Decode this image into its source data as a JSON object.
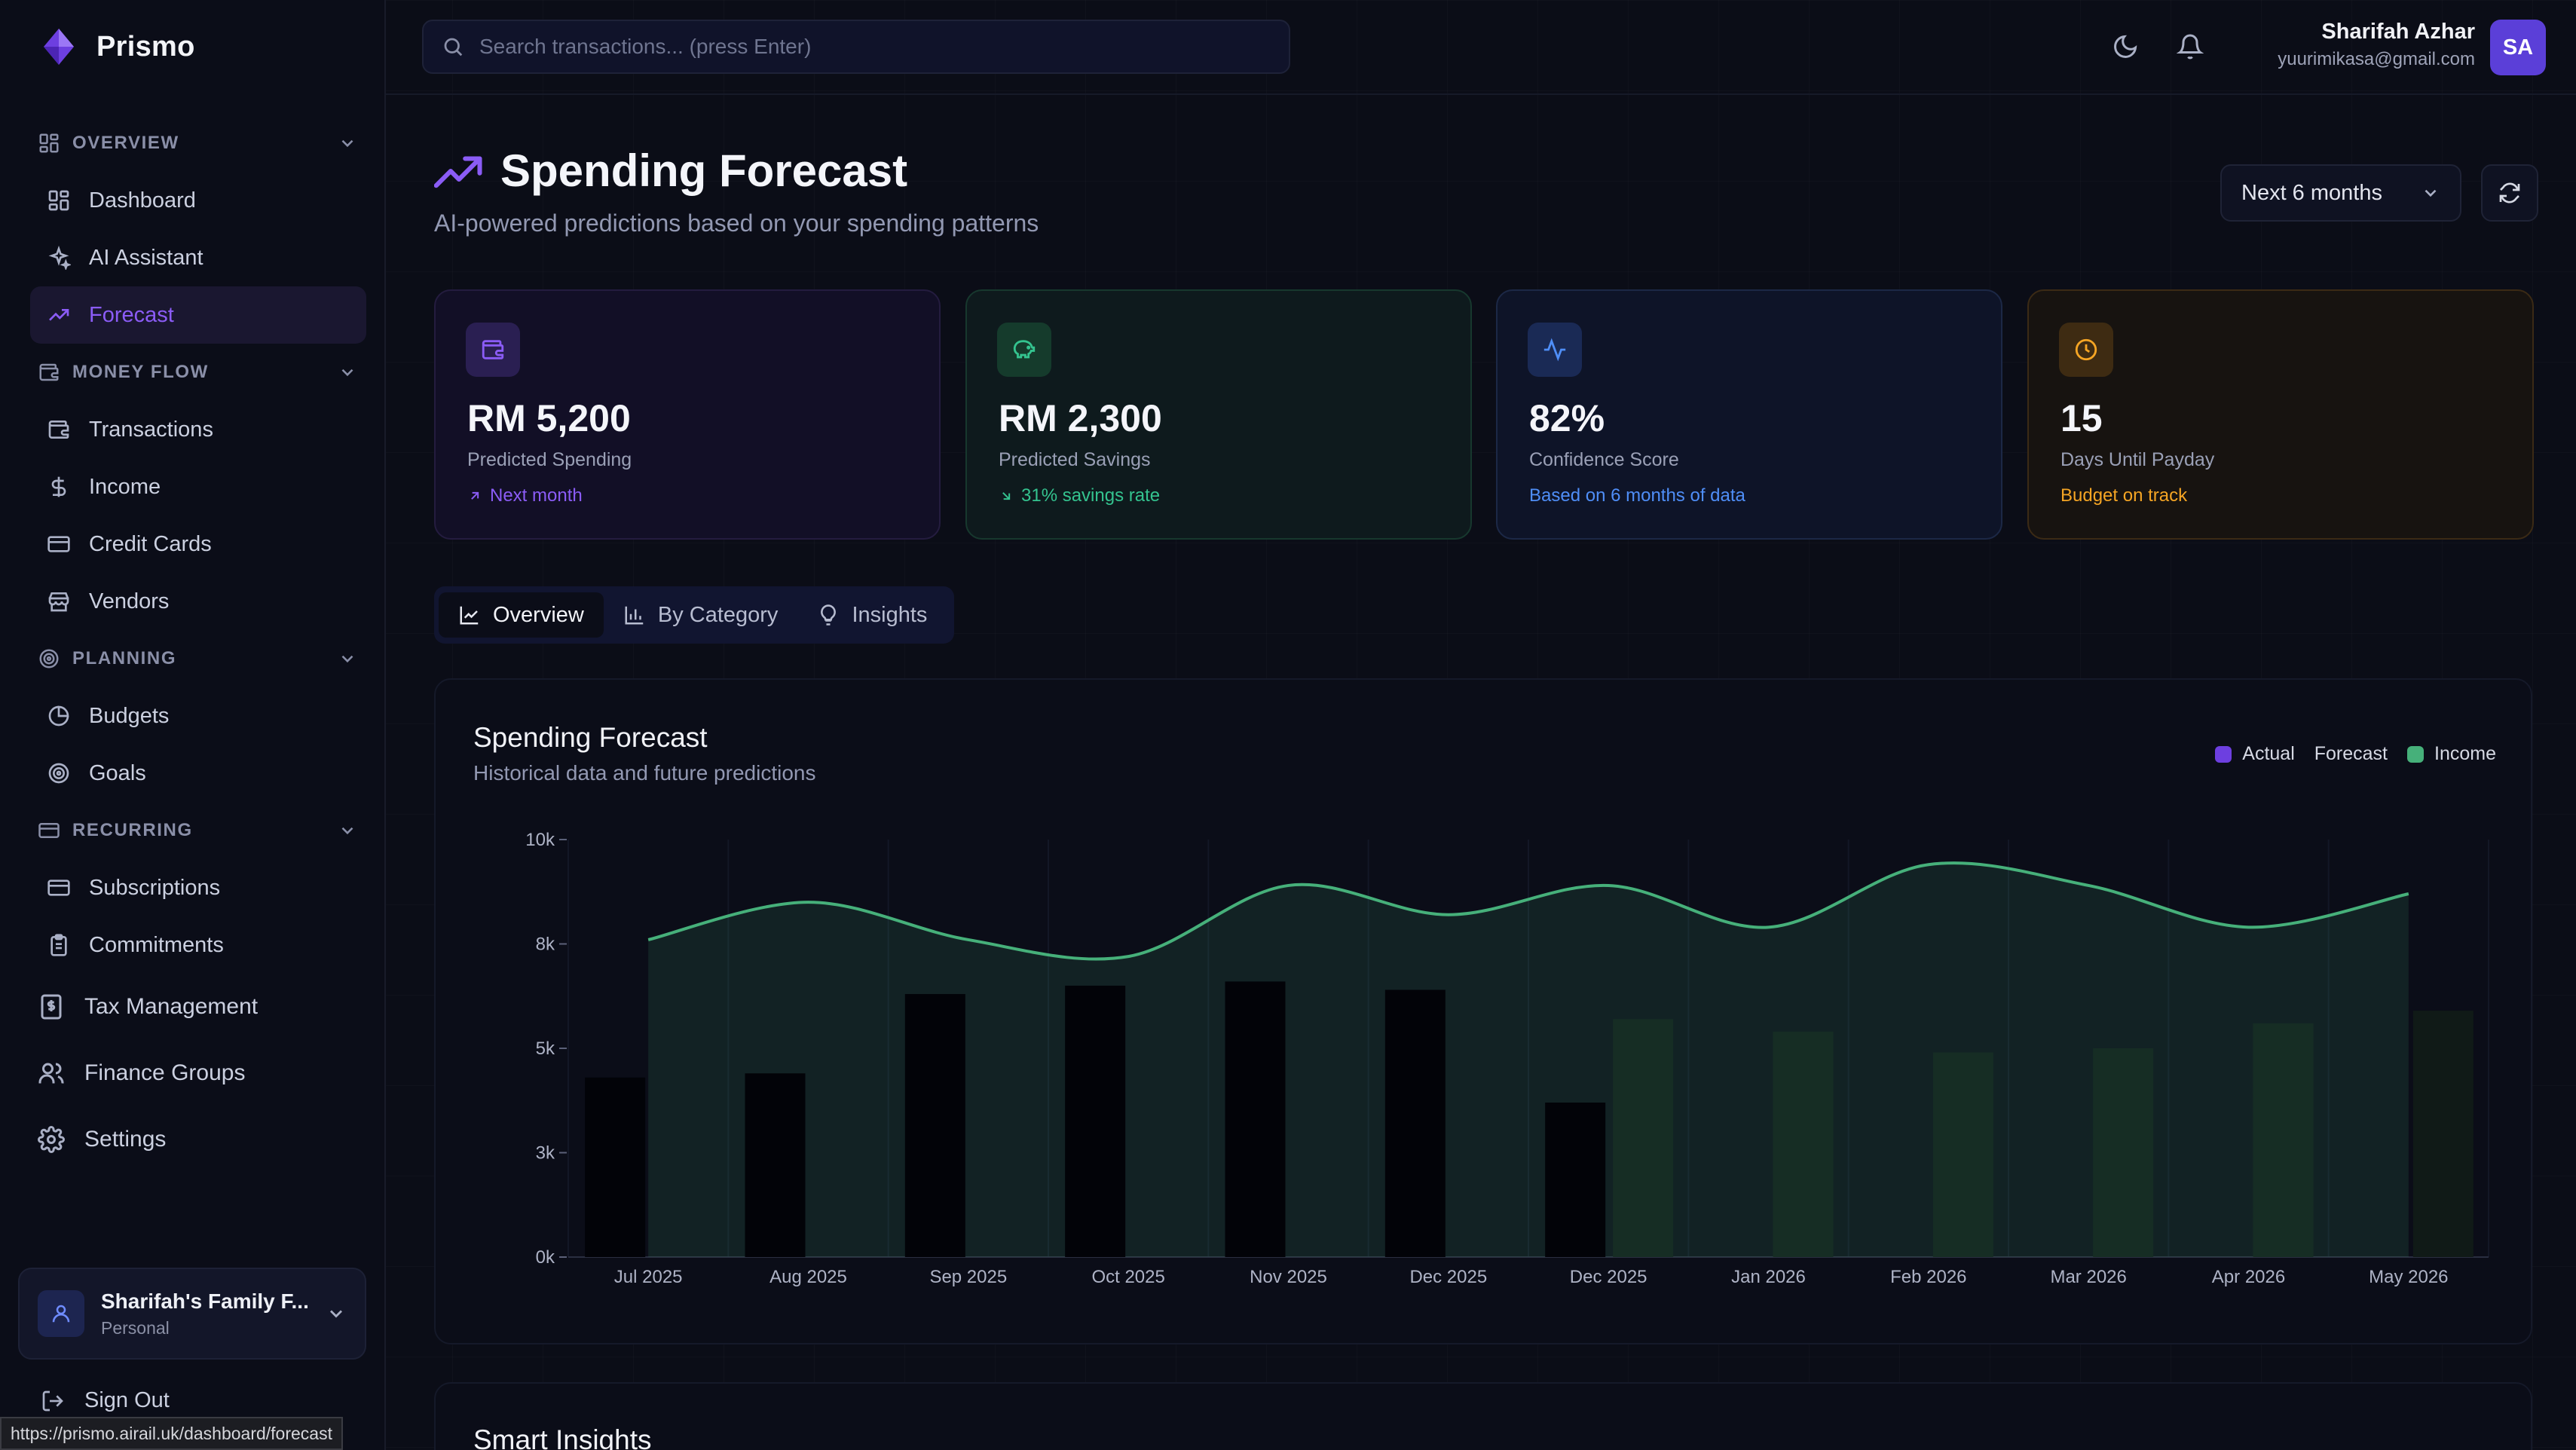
{
  "app": {
    "name": "Prismo"
  },
  "sidebar": {
    "sections": {
      "overview": "OVERVIEW",
      "money_flow": "MONEY FLOW",
      "planning": "PLANNING",
      "recurring": "RECURRING"
    },
    "items": {
      "dashboard": "Dashboard",
      "ai_assistant": "AI Assistant",
      "forecast": "Forecast",
      "transactions": "Transactions",
      "income": "Income",
      "credit_cards": "Credit Cards",
      "vendors": "Vendors",
      "budgets": "Budgets",
      "goals": "Goals",
      "subscriptions": "Subscriptions",
      "commitments": "Commitments",
      "tax_management": "Tax Management",
      "finance_groups": "Finance Groups",
      "settings": "Settings"
    },
    "workspace": {
      "name": "Sharifah's Family F...",
      "type": "Personal"
    },
    "sign_out": "Sign Out"
  },
  "statusbar": {
    "url": "https://prismo.airail.uk/dashboard/forecast"
  },
  "topbar": {
    "search_placeholder": "Search transactions... (press Enter)",
    "user_name": "Sharifah Azhar",
    "user_email": "yuurimikasa@gmail.com",
    "avatar_initials": "SA"
  },
  "page": {
    "title": "Spending Forecast",
    "subtitle": "AI-powered predictions based on your spending patterns",
    "period": "Next 6 months"
  },
  "cards": [
    {
      "value": "RM 5,200",
      "label": "Predicted Spending",
      "note": "Next month",
      "color": "#8b5cf6"
    },
    {
      "value": "RM 2,300",
      "label": "Predicted Savings",
      "note": "31% savings rate",
      "color": "#34c38f"
    },
    {
      "value": "82%",
      "label": "Confidence Score",
      "note": "Based on 6 months of data",
      "color": "#4f8ef7"
    },
    {
      "value": "15",
      "label": "Days Until Payday",
      "note": "Budget on track",
      "color": "#f5a524"
    }
  ],
  "tabs": {
    "overview": "Overview",
    "by_category": "By Category",
    "insights": "Insights"
  },
  "chart_panel": {
    "title": "Spending Forecast",
    "subtitle": "Historical data and future predictions",
    "legend": {
      "actual": "Actual",
      "forecast": "Forecast",
      "income": "Income"
    }
  },
  "chart_data": {
    "type": "bar",
    "categories": [
      "Jul 2025",
      "Aug 2025",
      "Sep 2025",
      "Oct 2025",
      "Nov 2025",
      "Dec 2025",
      "Dec 2025",
      "Jan 2026",
      "Feb 2026",
      "Mar 2026",
      "Apr 2026",
      "May 2026"
    ],
    "y_ticks": [
      "0k",
      "3k",
      "5k",
      "8k",
      "10k"
    ],
    "ylim": [
      0,
      10000
    ],
    "series": [
      {
        "name": "Actual",
        "type": "bar",
        "values": [
          4300,
          4400,
          6300,
          6500,
          6600,
          6400,
          3700,
          null,
          null,
          null,
          null,
          null
        ]
      },
      {
        "name": "Forecast",
        "type": "bar",
        "values": [
          null,
          null,
          null,
          null,
          null,
          null,
          5700,
          5400,
          4900,
          5000,
          5600,
          5900
        ]
      },
      {
        "name": "Income",
        "type": "area",
        "values": [
          7600,
          8500,
          7600,
          7200,
          8900,
          8200,
          8900,
          7900,
          9400,
          8900,
          7900,
          8700
        ]
      }
    ],
    "colors": {
      "actual": "#6d3fe0",
      "income": "#46b07a"
    }
  },
  "insights_panel": {
    "title": "Smart Insights"
  }
}
